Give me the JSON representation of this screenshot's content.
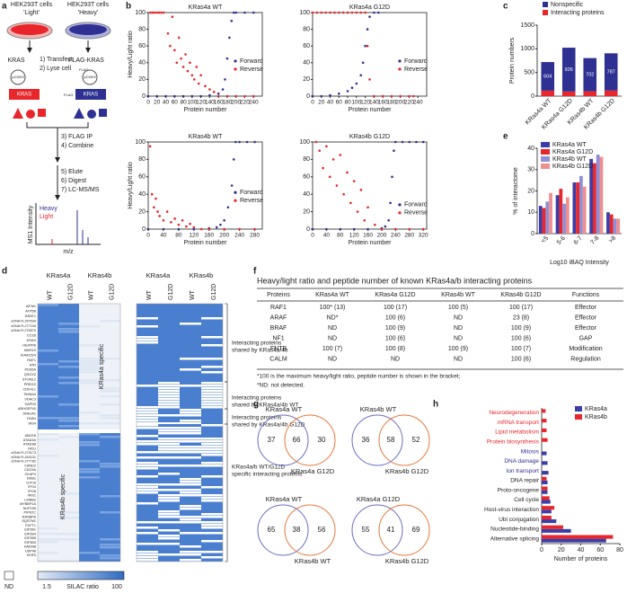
{
  "panel_labels": [
    "a",
    "b",
    "c",
    "d",
    "e",
    "f",
    "g",
    "h"
  ],
  "workflow": {
    "light_title": [
      "HEK293T cells",
      "'Light'"
    ],
    "heavy_title": [
      "HEK293T cells",
      "'Heavy'"
    ],
    "kras": "KRAS",
    "flag_kras": "FLAG-KRAS",
    "vector": "pCMV5",
    "flag": "FLAG",
    "steps1": [
      "1) Transfect",
      "2) Lyse cell"
    ],
    "steps2": [
      "3) FLAG IP",
      "4) Combine"
    ],
    "steps3": [
      "5) Elute",
      "6) Digest",
      "7) LC-MS/MS"
    ],
    "heavy": "Heavy",
    "light": "Light",
    "y_label": "MS1 Intensity",
    "x_label": "m/z"
  },
  "chart_data": [
    {
      "type": "scatter",
      "title": "KRas4a WT",
      "x_label": "Protein number",
      "y_label": "Heavy/Light ratio",
      "xlim": [
        0,
        260
      ],
      "xticks": [
        0,
        20,
        40,
        60,
        80,
        100,
        120,
        140,
        160,
        180,
        200,
        220,
        240
      ],
      "ylim": [
        0,
        100
      ],
      "yticks": [
        0,
        20,
        40,
        60,
        80,
        100
      ],
      "legend": "right",
      "series": [
        {
          "name": "Forward",
          "color": "#2e3192",
          "x": [
            0,
            20,
            40,
            60,
            80,
            100,
            120,
            140,
            160,
            170,
            175,
            180,
            185,
            190,
            195,
            200,
            220,
            240
          ],
          "values": [
            0,
            0,
            0,
            0,
            0,
            0,
            0,
            1,
            3,
            8,
            20,
            45,
            70,
            90,
            100,
            100,
            100,
            100
          ]
        },
        {
          "name": "Reverse",
          "color": "#e8262b",
          "x": [
            5,
            10,
            15,
            20,
            25,
            30,
            35,
            45,
            50,
            55,
            60,
            65,
            70,
            75,
            80,
            85,
            90,
            95,
            100,
            105,
            110,
            115,
            120,
            130,
            140,
            150,
            160,
            180,
            200,
            220,
            240
          ],
          "values": [
            100,
            100,
            100,
            100,
            100,
            100,
            100,
            75,
            60,
            95,
            55,
            40,
            70,
            45,
            35,
            50,
            30,
            40,
            25,
            20,
            35,
            15,
            25,
            12,
            8,
            5,
            0,
            0,
            0,
            0,
            0
          ]
        }
      ]
    },
    {
      "type": "scatter",
      "title": "KRas4a G12D",
      "x_label": "Protein number",
      "xlim": [
        0,
        260
      ],
      "xticks": [
        0,
        20,
        40,
        60,
        80,
        100,
        120,
        140,
        160,
        180,
        200,
        220,
        240
      ],
      "ylim": [
        0,
        100
      ],
      "yticks": [
        0,
        20,
        40,
        60,
        80,
        100
      ],
      "legend": "right",
      "series": [
        {
          "name": "Forward",
          "color": "#2e3192",
          "x": [
            0,
            20,
            40,
            60,
            80,
            90,
            100,
            110,
            115,
            120,
            125,
            130,
            140,
            150
          ],
          "values": [
            0,
            0,
            1,
            3,
            6,
            10,
            15,
            25,
            40,
            60,
            80,
            95,
            100,
            100
          ]
        },
        {
          "name": "Reverse",
          "color": "#e8262b",
          "x": [
            0,
            10,
            20,
            30,
            40,
            50,
            60,
            70,
            80,
            90,
            100,
            110,
            120,
            125,
            130,
            140,
            160,
            180,
            200,
            220,
            230
          ],
          "values": [
            100,
            100,
            100,
            100,
            100,
            100,
            100,
            100,
            100,
            100,
            100,
            100,
            100,
            60,
            20,
            0,
            0,
            0,
            0,
            0,
            0
          ]
        }
      ]
    },
    {
      "type": "scatter",
      "title": "KRas4b WT",
      "x_label": "Protein number",
      "y_label": "Heavy/Light ratio",
      "xlim": [
        0,
        300
      ],
      "xticks": [
        0,
        40,
        80,
        120,
        160,
        200,
        240,
        280
      ],
      "ylim": [
        0,
        100
      ],
      "yticks": [
        0,
        20,
        40,
        60,
        80,
        100
      ],
      "legend": "right",
      "series": [
        {
          "name": "Forward",
          "color": "#2e3192",
          "x": [
            0,
            40,
            80,
            120,
            160,
            180,
            190,
            200,
            210,
            220,
            225,
            230,
            240,
            260,
            280
          ],
          "values": [
            0,
            0,
            0,
            0,
            1,
            2,
            5,
            10,
            25,
            50,
            80,
            100,
            100,
            100,
            100
          ]
        },
        {
          "name": "Reverse",
          "color": "#e8262b",
          "x": [
            5,
            10,
            15,
            20,
            25,
            30,
            40,
            50,
            60,
            70,
            80,
            90,
            100,
            110,
            120,
            140,
            160,
            200,
            240,
            280
          ],
          "values": [
            95,
            40,
            25,
            35,
            20,
            15,
            10,
            20,
            8,
            12,
            5,
            10,
            3,
            6,
            2,
            0,
            0,
            0,
            0,
            0
          ]
        }
      ]
    },
    {
      "type": "scatter",
      "title": "KRas4b G12D",
      "x_label": "Protein number",
      "xlim": [
        0,
        330
      ],
      "xticks": [
        0,
        40,
        80,
        120,
        160,
        200,
        240,
        280,
        320
      ],
      "ylim": [
        0,
        100
      ],
      "yticks": [
        0,
        20,
        40,
        60,
        80,
        100
      ],
      "legend": "lower right",
      "series": [
        {
          "name": "Forward",
          "color": "#2e3192",
          "x": [
            0,
            40,
            80,
            120,
            160,
            200,
            210,
            220,
            225,
            230,
            235,
            240,
            260,
            280,
            300,
            320
          ],
          "values": [
            0,
            0,
            0,
            0,
            0,
            1,
            3,
            10,
            30,
            60,
            90,
            100,
            100,
            100,
            100,
            100
          ]
        },
        {
          "name": "Reverse",
          "color": "#e8262b",
          "x": [
            10,
            20,
            30,
            40,
            50,
            60,
            70,
            80,
            90,
            100,
            110,
            120,
            130,
            140,
            150,
            160,
            180,
            200,
            240,
            280,
            320
          ],
          "values": [
            100,
            90,
            70,
            95,
            60,
            80,
            50,
            85,
            40,
            65,
            30,
            55,
            20,
            45,
            10,
            25,
            5,
            0,
            0,
            0,
            0
          ]
        }
      ]
    },
    {
      "type": "stacked_bar",
      "y_label": "Protein numbers",
      "categories": [
        "KRas4a WT",
        "KRas4a G12D",
        "KRas4b WT",
        "KRas4b G12D"
      ],
      "ylim": [
        0,
        1500
      ],
      "yticks": [
        0,
        500,
        1000,
        1500
      ],
      "legend": "top",
      "series": [
        {
          "name": "Nonspecific",
          "color": "#2e3192",
          "values": [
            604,
            926,
            702,
            787
          ],
          "labels": true
        },
        {
          "name": "Interacting proteins",
          "color": "#e8262b",
          "values": [
            116,
            98,
            102,
            118
          ]
        }
      ]
    },
    {
      "type": "grouped_bar",
      "y_label": "% of interactome",
      "x_label": "Log10 iBAQ Intensity",
      "categories": [
        "<5",
        "5-6",
        "6-7",
        "7-8",
        ">8"
      ],
      "ylim": [
        0,
        40
      ],
      "yticks": [
        0,
        10,
        20,
        30,
        40
      ],
      "legend": "upper left",
      "series": [
        {
          "name": "KRas4a WT",
          "color": "#3b3ea6",
          "values": [
            13,
            18,
            24,
            35,
            10
          ]
        },
        {
          "name": "KRas4a G12D",
          "color": "#e8262b",
          "values": [
            12,
            21,
            24,
            33,
            9
          ]
        },
        {
          "name": "KRas4b WT",
          "color": "#8f8fd6",
          "values": [
            15,
            14,
            27,
            37,
            7
          ]
        },
        {
          "name": "KRas4b G12D",
          "color": "#f08f8f",
          "values": [
            19,
            17,
            22,
            36,
            7
          ]
        }
      ]
    },
    {
      "type": "barh",
      "x_label": "Number of proteins",
      "categories": [
        "Neurodegeneration",
        "mRNA transport",
        "Lipid metabolism",
        "Protein biosynthesis",
        "Mitosis",
        "DNA damage",
        "Ion transport",
        "DNA repair",
        "Proto-oncogene",
        "Cell cycle",
        "Host-virus interaction",
        "Ubl conjugation",
        "Nucleotide-binding",
        "Alternative splicing"
      ],
      "category_colors": [
        "#e8262b",
        "#e8262b",
        "#e8262b",
        "#e8262b",
        "#2e3192",
        "#2e3192",
        "#2e3192",
        "#222222",
        "#222222",
        "#222222",
        "#222222",
        "#222222",
        "#222222",
        "#222222"
      ],
      "xlim": [
        0,
        80
      ],
      "xticks": [
        0,
        20,
        40,
        60,
        80
      ],
      "legend": "upper right",
      "series": [
        {
          "name": "KRas4a",
          "color": "#3b3ea6",
          "values": [
            0,
            0,
            0,
            0,
            5,
            6,
            7,
            6,
            6,
            9,
            10,
            15,
            30,
            66
          ]
        },
        {
          "name": "KRas4b",
          "color": "#e8262b",
          "values": [
            4,
            5,
            5,
            6,
            0,
            0,
            0,
            5,
            6,
            8,
            13,
            10,
            22,
            73
          ]
        }
      ]
    }
  ],
  "heatmap": {
    "groups": [
      "KRas4a",
      "KRas4b"
    ],
    "columns": [
      "WT",
      "G12D"
    ],
    "block_labels": [
      "KRas4a specific",
      "KRas4b specific"
    ],
    "genes_top": [
      "AIFM1",
      "ATP5B",
      "BRAT1",
      "cDNA FLJ57634",
      "cDNA FLJ77100",
      "cDNA FLJ75570",
      "CCS5",
      "KRAS",
      "HEATR6",
      "MMS19",
      "KIAA1524",
      "RAF1",
      "ATR",
      "PDS5A",
      "QSOX2",
      "STOML2",
      "PREGS",
      "CDK4L1",
      "TIMM44",
      "VDAC3",
      "SAPD3",
      "ARHGEF40",
      "DNAJA1",
      "FASN",
      "IRS4"
    ],
    "genes_bottom": [
      "ABCE8",
      "ATAD3A",
      "ATAD3B",
      "MCU",
      "cDNA FLJ73173",
      "cDNA FLJ53131",
      "cDNA FLJ77782",
      "CAND2",
      "CDC5A",
      "CKAP4",
      "DDB1",
      "GTF3I",
      "IPO4",
      "IPO8",
      "IWS1",
      "LMNB2",
      "MYBBP1A",
      "NUP155",
      "PIPK2C",
      "RANBP6",
      "SQSTM1",
      "FDFT1",
      "EIF2B1",
      "EIF2B4",
      "EIF2B5",
      "EIF3B3",
      "HADHB",
      "USP46",
      "XKRS"
    ],
    "annotations": [
      [
        "Interacting proteins",
        "shared by KRas4a/4b"
      ],
      [
        "Interacting proteins",
        "shared by KRas4a/4b WT"
      ],
      [
        "Interacting proteins",
        "shared by KRas4a/4b G12D"
      ],
      [
        "KRas4a/b WT/G12D",
        "specific interacting proteins"
      ]
    ],
    "legend": {
      "nd": "ND",
      "min": 1.5,
      "max": 100,
      "title": "SILAC ratio"
    }
  },
  "table": {
    "title": "Heavy/light ratio and peptide number of known KRas4a/b interacting proteins",
    "header": [
      "Proteins",
      "KRas4a WT",
      "KRas4a G12D",
      "KRas4b WT",
      "KRas4b G12D",
      "Functions"
    ],
    "rows": [
      [
        "RAF1",
        "100* (13)",
        "100 (17)",
        "100 (5)",
        "100 (17)",
        "Effector"
      ],
      [
        "ARAF",
        "ND*",
        "100 (6)",
        "ND",
        "23 (8)",
        "Effector"
      ],
      [
        "BRAF",
        "ND",
        "100 (9)",
        "ND",
        "100 (9)",
        "Effector"
      ],
      [
        "NF1",
        "ND",
        "100 (6)",
        "ND",
        "100 (6)",
        "GAP"
      ],
      [
        "FNTB",
        "100 (7)",
        "100 (8)",
        "100 (9)",
        "100 (7)",
        "Modification"
      ],
      [
        "CALM",
        "ND",
        "ND",
        "ND",
        "100 (6)",
        "Regulation"
      ]
    ],
    "notes": [
      "*100 is the maximum heavy/light ratio, peptide number is shown in the bracket;",
      "*ND: not detected."
    ]
  },
  "venn": [
    {
      "sets": [
        "KRas4a WT",
        "KRas4a G12D"
      ],
      "counts": [
        37,
        66,
        30
      ]
    },
    {
      "sets": [
        "KRas4b WT",
        "KRas4b G12D"
      ],
      "counts": [
        36,
        58,
        52
      ]
    },
    {
      "sets": [
        "KRas4a WT",
        "KRas4b WT"
      ],
      "counts": [
        65,
        38,
        56
      ]
    },
    {
      "sets": [
        "KRas4a G12D",
        "KRas4b G12D"
      ],
      "counts": [
        55,
        41,
        69
      ]
    }
  ]
}
